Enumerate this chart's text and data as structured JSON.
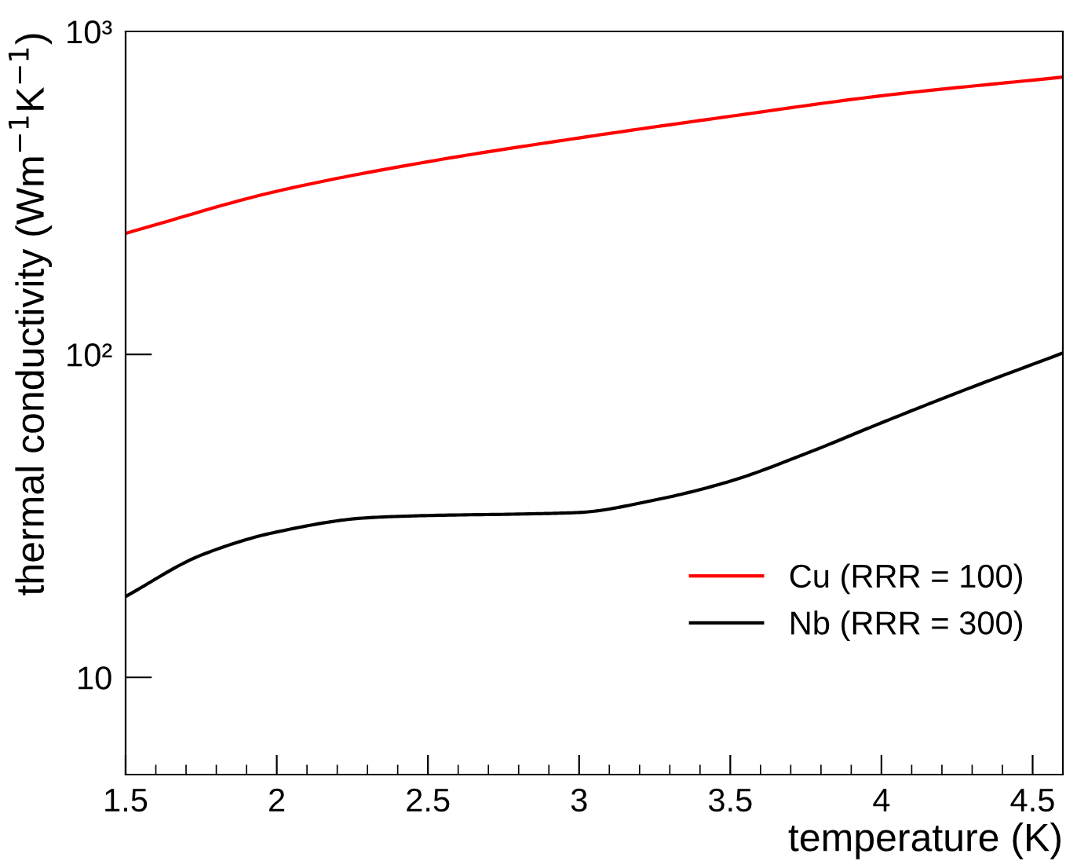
{
  "chart_data": {
    "type": "line",
    "xlabel": "temperature (K)",
    "ylabel": "thermal conductivity (Wm$^{−1}$K$^{−1}$)",
    "log": "y",
    "xlim": [
      1.5,
      4.6
    ],
    "ylim": [
      5,
      1000
    ],
    "xticks": [
      1.5,
      2,
      2.5,
      3,
      3.5,
      4,
      4.5
    ],
    "yticks": [
      10,
      {
        "value": 100,
        "label": "10²"
      },
      {
        "value": 1000,
        "label": "10³"
      }
    ],
    "grid": false,
    "legend": "bottom right",
    "marker": "none",
    "line_style": "solid",
    "series": [
      {
        "name": "Cu (RRR = 100)",
        "color": "#ff0000",
        "x": [
          1.5,
          2,
          2.5,
          3,
          3.5,
          4,
          4.6
        ],
        "values": [
          237,
          320,
          395,
          468,
          546,
          632,
          722
        ]
      },
      {
        "name": "Nb (RRR = 300)",
        "color": "#000000",
        "x": [
          1.5,
          1.75,
          2,
          2.3,
          2.5,
          2.85,
          3,
          3.25,
          3.5,
          3.75,
          4,
          4.25,
          4.6
        ],
        "values": [
          17.8,
          23.9,
          28.2,
          31.2,
          31.7,
          32.1,
          32.4,
          35.4,
          40.5,
          49.3,
          61.4,
          76,
          101
        ]
      }
    ]
  }
}
